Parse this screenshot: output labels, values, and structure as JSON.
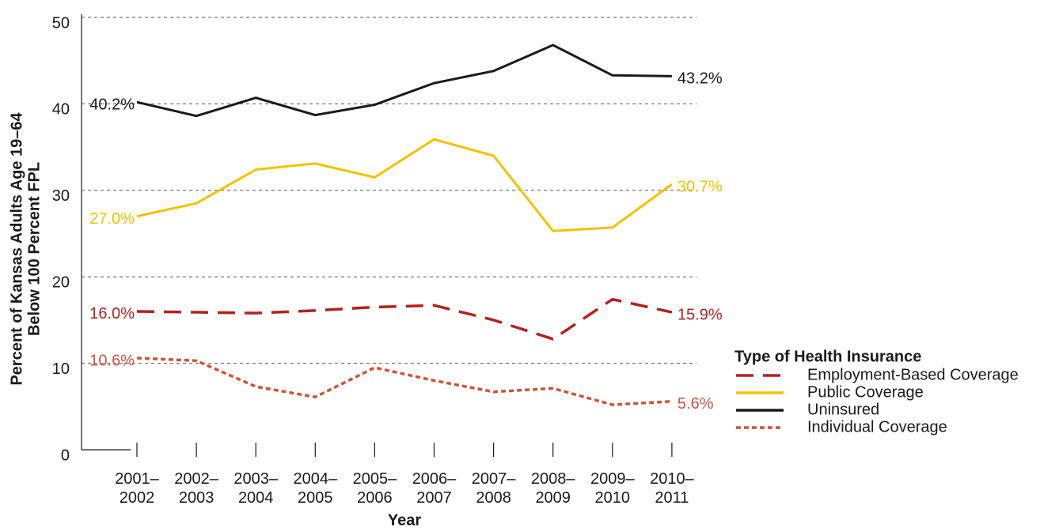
{
  "chart_data": {
    "type": "line",
    "y_label": [
      "Percent of Kansas Adults Age 19–64",
      "Below 100 Percent FPL"
    ],
    "x_label": "Year",
    "categories": [
      "2001–2002",
      "2002–2003",
      "2003–2004",
      "2004–2005",
      "2005–2006",
      "2006–2007",
      "2007–2008",
      "2008–2009",
      "2009–2010",
      "2010–2011"
    ],
    "ylim": [
      0,
      50
    ],
    "yticks": [
      0,
      10,
      20,
      30,
      40,
      50
    ],
    "grid": true,
    "legend_title": "Type of Health Insurance",
    "legend": "right",
    "series": [
      {
        "name": "Employment-Based Coverage",
        "color": "#b3211e",
        "dash": "long",
        "values": [
          16.0,
          15.9,
          15.8,
          16.1,
          16.5,
          16.7,
          15.0,
          12.8,
          17.4,
          15.9
        ],
        "value_labels": [
          "16.0%",
          null,
          null,
          null,
          null,
          null,
          null,
          null,
          null,
          "15.9%"
        ]
      },
      {
        "name": "Public Coverage",
        "color": "#f2c200",
        "dash": "solid",
        "values": [
          27.0,
          28.5,
          32.4,
          33.1,
          31.5,
          35.9,
          34.0,
          25.3,
          25.7,
          30.7
        ],
        "value_labels": [
          "27.0%",
          null,
          null,
          null,
          null,
          null,
          null,
          null,
          null,
          "30.7%"
        ]
      },
      {
        "name": "Uninsured",
        "color": "#1a1a1a",
        "dash": "solid",
        "values": [
          40.2,
          38.6,
          40.7,
          38.7,
          39.9,
          42.4,
          43.8,
          46.8,
          43.3,
          43.2
        ],
        "value_labels": [
          "40.2%",
          null,
          null,
          null,
          null,
          null,
          null,
          null,
          null,
          "43.2%"
        ]
      },
      {
        "name": "Individual Coverage",
        "color": "#c9553d",
        "dash": "short",
        "values": [
          10.6,
          10.3,
          7.3,
          6.1,
          9.5,
          8.0,
          6.7,
          7.1,
          5.2,
          5.6
        ],
        "value_labels": [
          "10.6%",
          null,
          null,
          null,
          null,
          null,
          null,
          null,
          null,
          "5.6%"
        ]
      }
    ]
  }
}
